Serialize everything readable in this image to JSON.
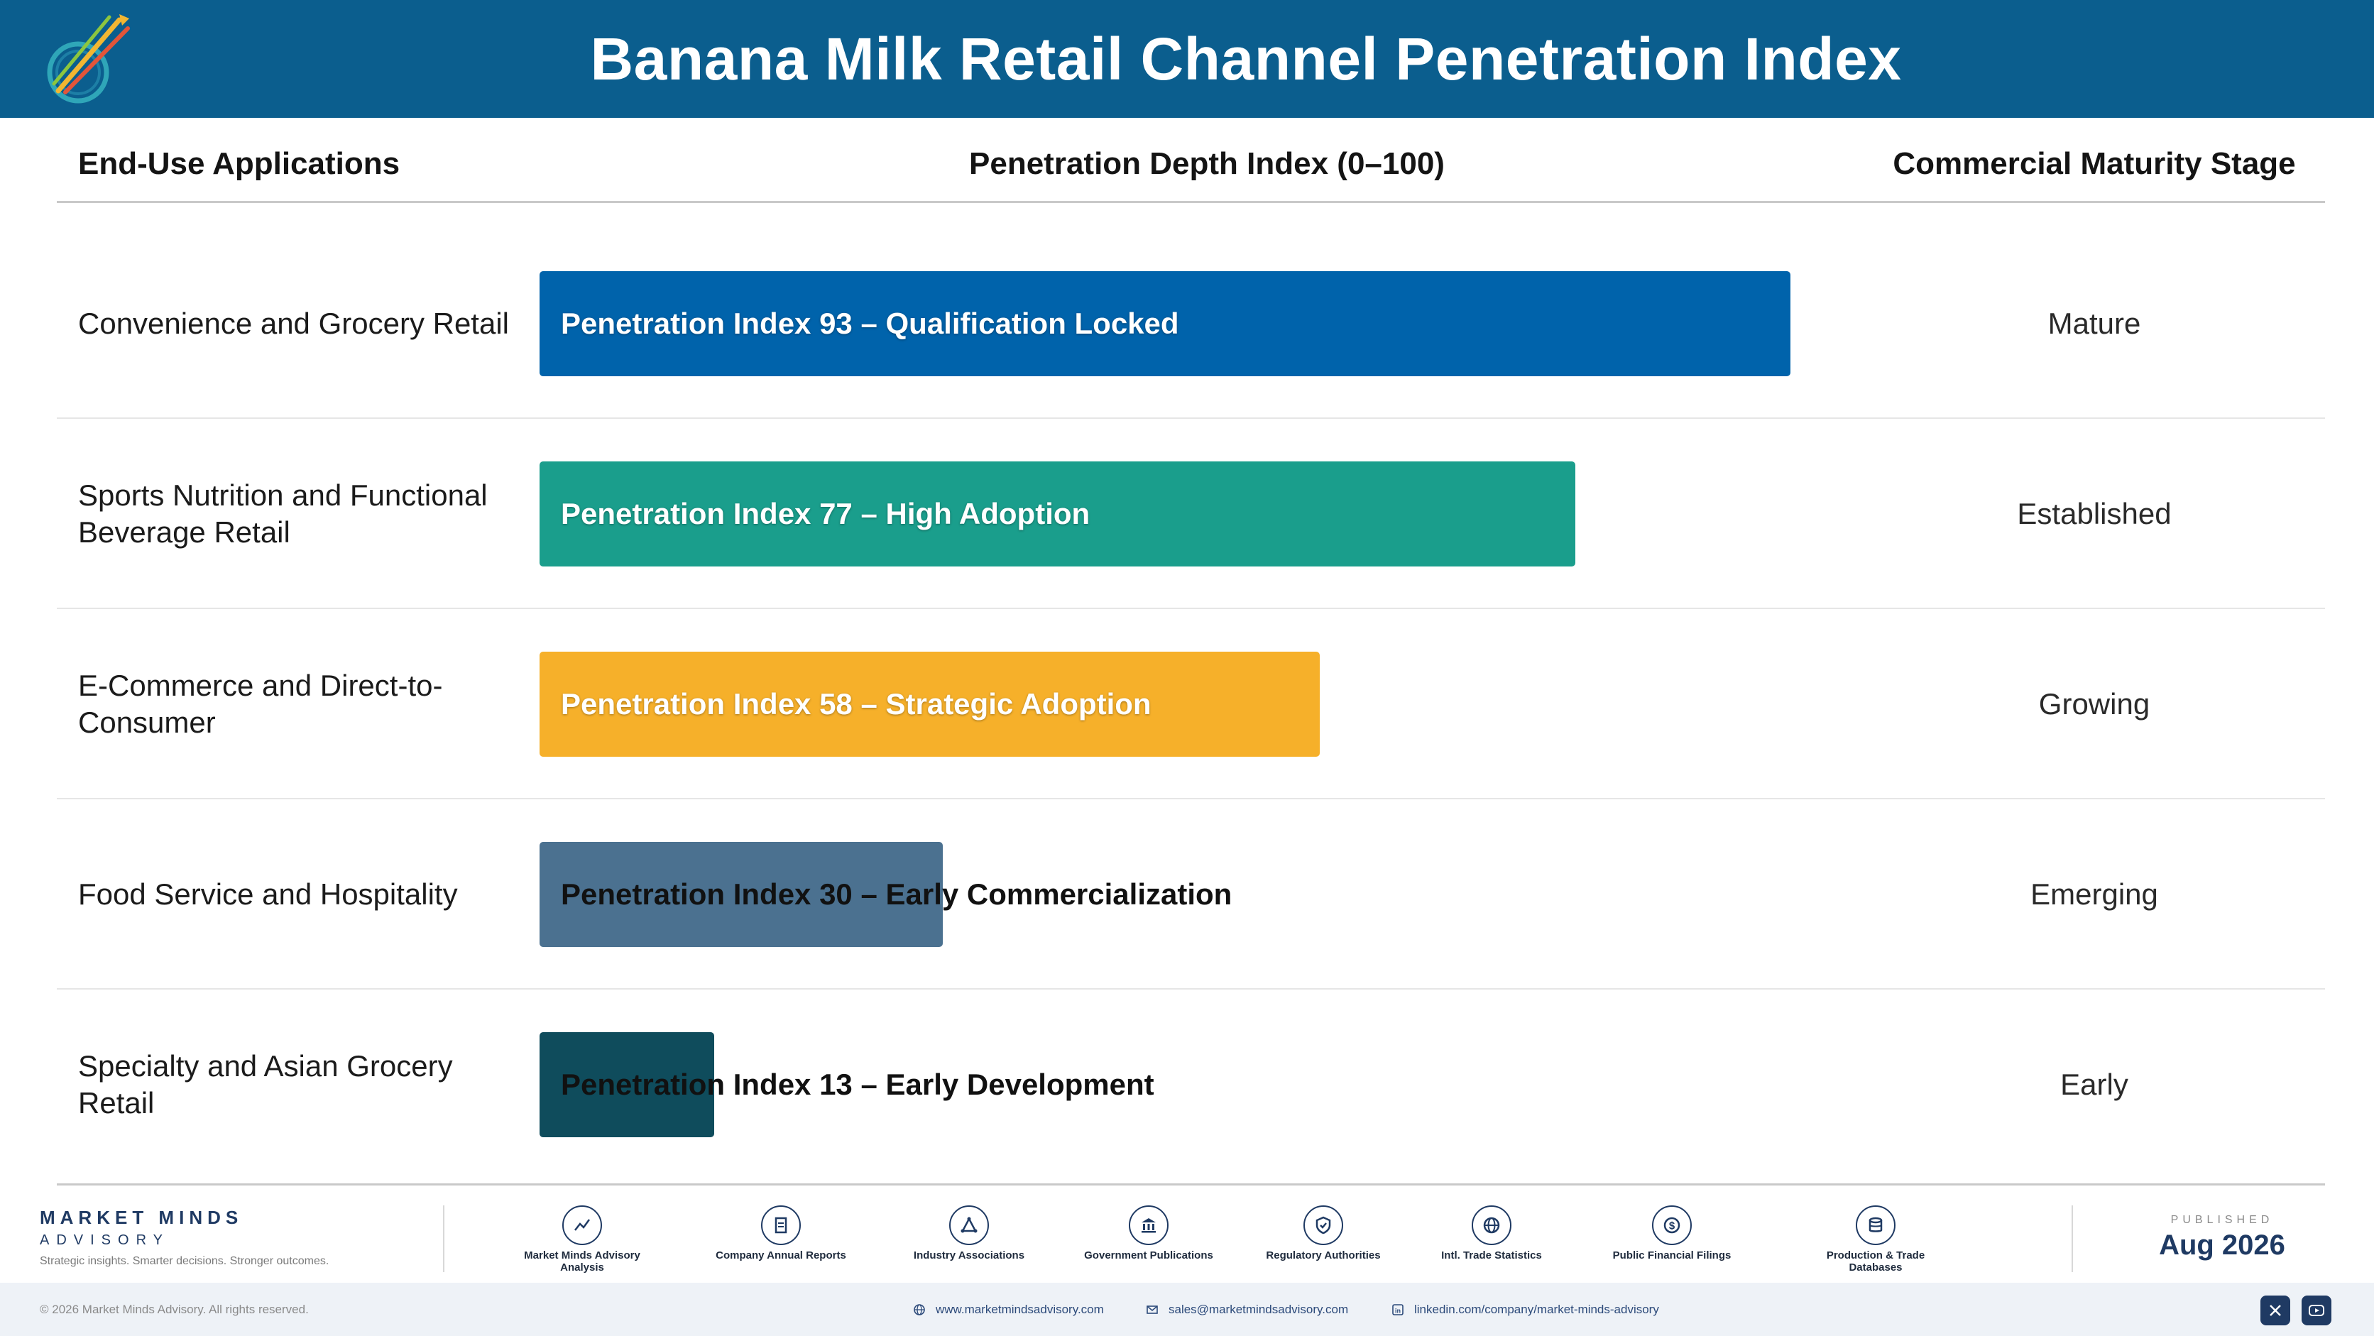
{
  "header": {
    "title": "Banana Milk Retail Channel Penetration Index",
    "logo_caption": "Market Minds Advisory"
  },
  "columns": {
    "applications": "End-Use Applications",
    "penetration": "Penetration Depth Index (0–100)",
    "maturity": "Commercial Maturity Stage"
  },
  "chart_data": {
    "type": "bar",
    "orientation": "horizontal",
    "title": "Banana Milk Retail Channel Penetration Index",
    "xlabel": "Penetration Depth Index (0–100)",
    "xlim": [
      0,
      100
    ],
    "categories": [
      "Convenience and Grocery Retail",
      "Sports Nutrition and Functional Beverage Retail",
      "E-Commerce and Direct-to-Consumer",
      "Food Service and Hospitality",
      "Specialty and Asian Grocery Retail"
    ],
    "values": [
      93,
      77,
      58,
      30,
      13
    ],
    "bar_labels": [
      "Penetration Index 93 – Qualification Locked",
      "Penetration Index 77 – High Adoption",
      "Penetration Index 58 – Strategic Adoption",
      "Penetration Index 30 – Early Commercialization",
      "Penetration Index 13 – Early Development"
    ],
    "stages": [
      "Mature",
      "Established",
      "Growing",
      "Emerging",
      "Early"
    ],
    "colors": [
      "#0063ab",
      "#1a9e8c",
      "#f6b02a",
      "#4b7190",
      "#0f4c5c"
    ]
  },
  "footer": {
    "brand_name": "MARKET MINDS",
    "brand_sub": "ADVISORY",
    "brand_tagline": "Strategic insights. Smarter decisions. Stronger outcomes.",
    "sources": [
      {
        "label": "Market Minds Advisory Analysis",
        "icon": "chart-line-icon"
      },
      {
        "label": "Company Annual Reports",
        "icon": "document-icon"
      },
      {
        "label": "Industry Associations",
        "icon": "network-icon"
      },
      {
        "label": "Government Publications",
        "icon": "government-building-icon"
      },
      {
        "label": "Regulatory Authorities",
        "icon": "shield-check-icon"
      },
      {
        "label": "Intl. Trade Statistics",
        "icon": "globe-icon"
      },
      {
        "label": "Public Financial Filings",
        "icon": "dollar-icon"
      },
      {
        "label": "Production & Trade Databases",
        "icon": "database-icon"
      }
    ],
    "published_label": "PUBLISHED",
    "published_date": "Aug 2026",
    "copyright": "© 2026 Market Minds Advisory. All rights reserved.",
    "website": "www.marketmindsadvisory.com",
    "email": "sales@marketmindsadvisory.com",
    "linkedin": "linkedin.com/company/market-minds-advisory"
  }
}
